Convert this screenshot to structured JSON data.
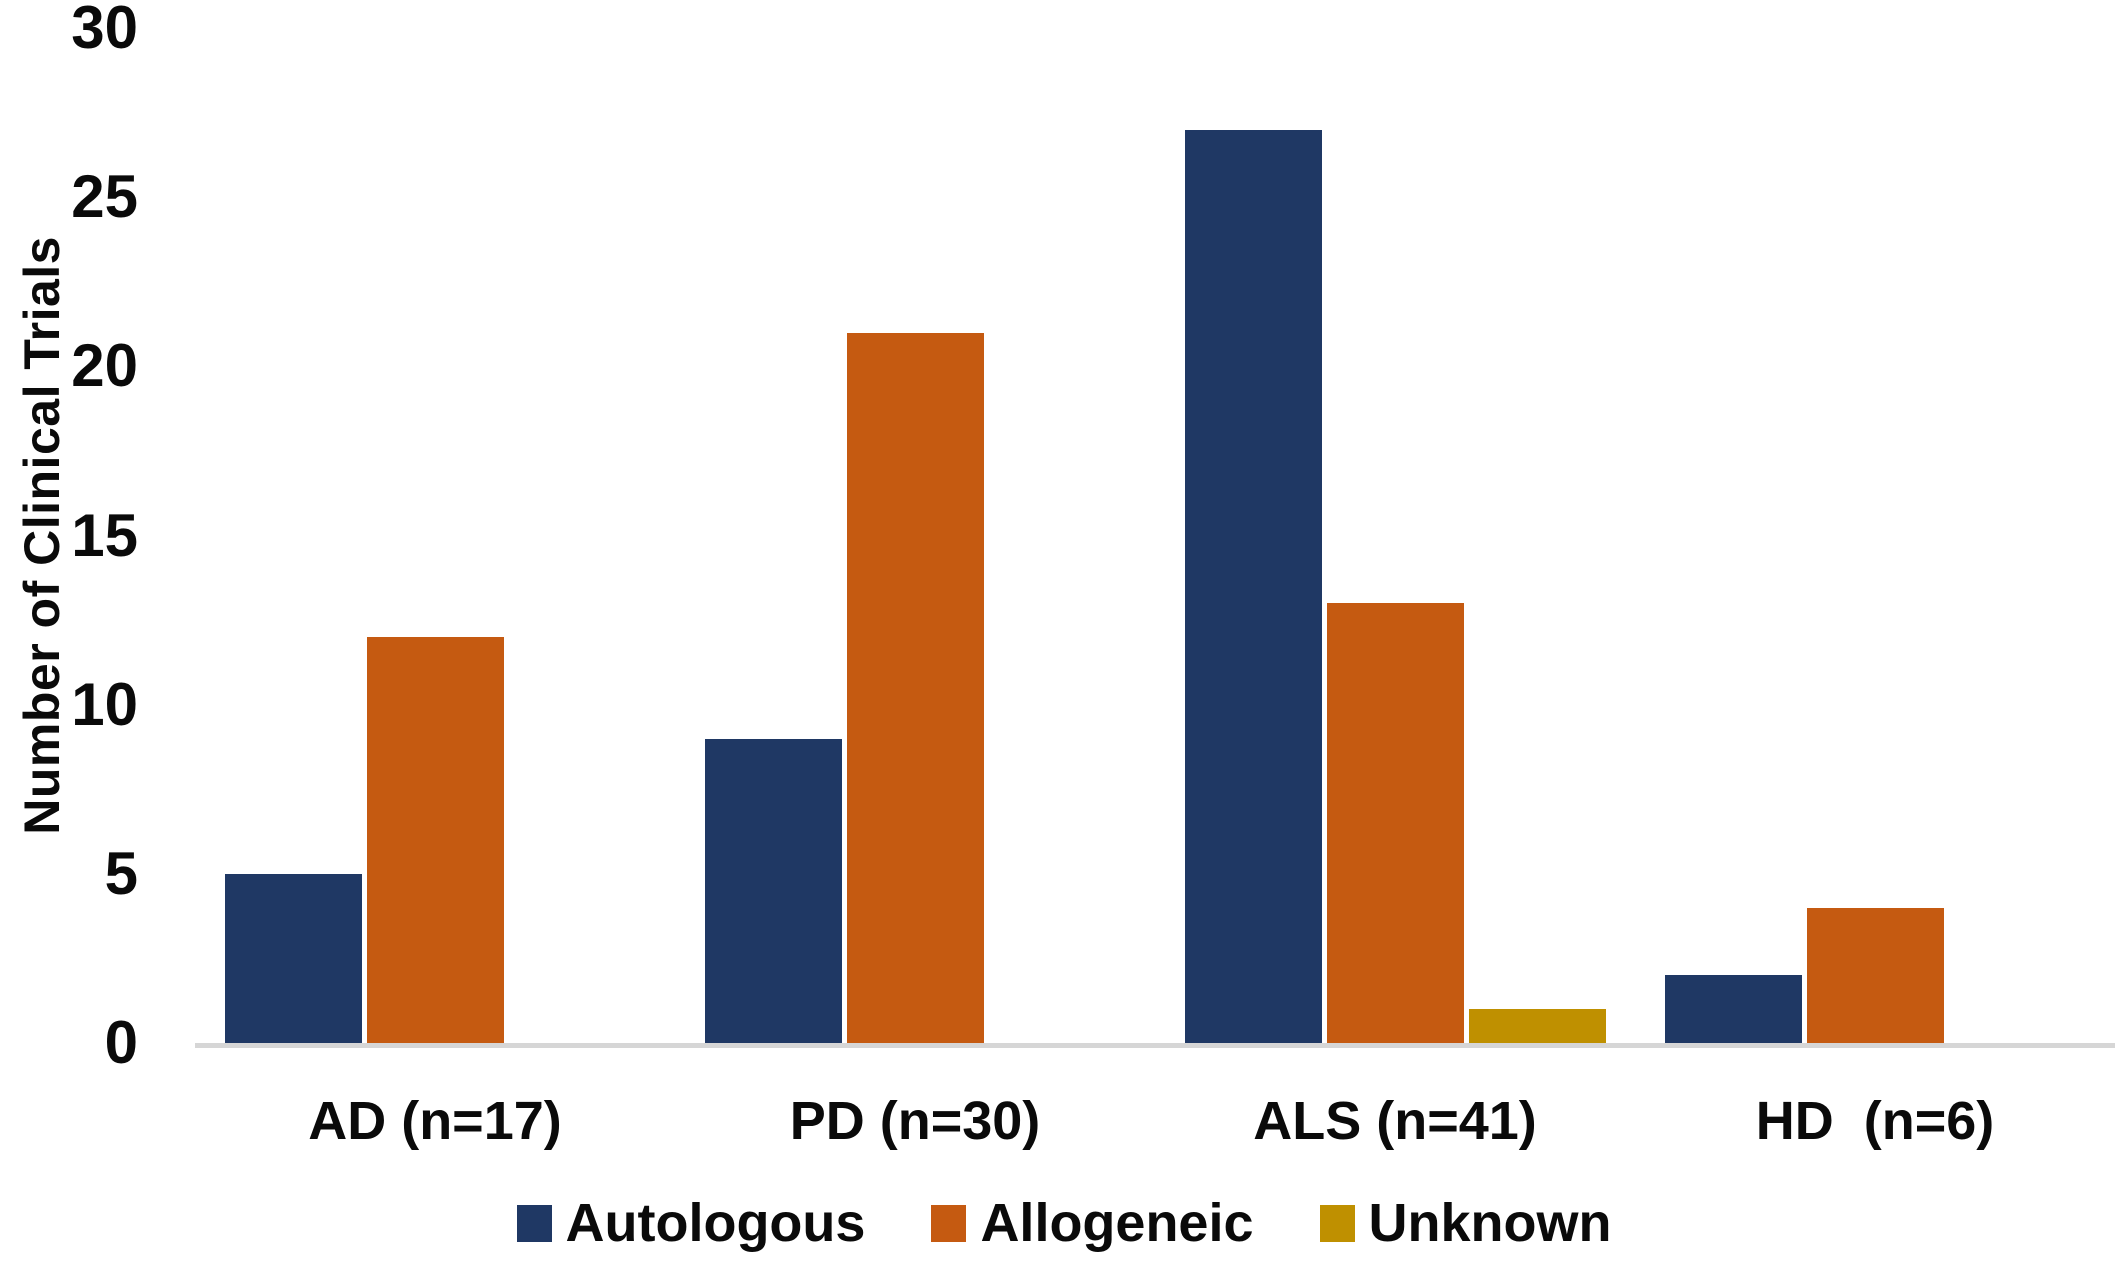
{
  "chart_data": {
    "type": "bar",
    "title": "",
    "xlabel": "",
    "ylabel": "Number of Clinical Trials",
    "categories": [
      "AD (n=17)",
      "PD (n=30)",
      "ALS (n=41)",
      "HD  (n=6)"
    ],
    "series": [
      {
        "name": "Autologous",
        "color": "#1f3864",
        "values": [
          5,
          9,
          27,
          2
        ]
      },
      {
        "name": "Allogeneic",
        "color": "#c55a11",
        "values": [
          12,
          21,
          13,
          4
        ]
      },
      {
        "name": "Unknown",
        "color": "#bf9000",
        "values": [
          0,
          0,
          1,
          0
        ]
      }
    ],
    "ylim": [
      0,
      30
    ],
    "yticks": [
      0,
      5,
      10,
      15,
      20,
      25,
      30
    ],
    "grid": false,
    "legend_position": "bottom"
  },
  "colors": {
    "background": "#ffffff",
    "axis_line": "#d6d6d6",
    "text": "#0a0a0a"
  }
}
